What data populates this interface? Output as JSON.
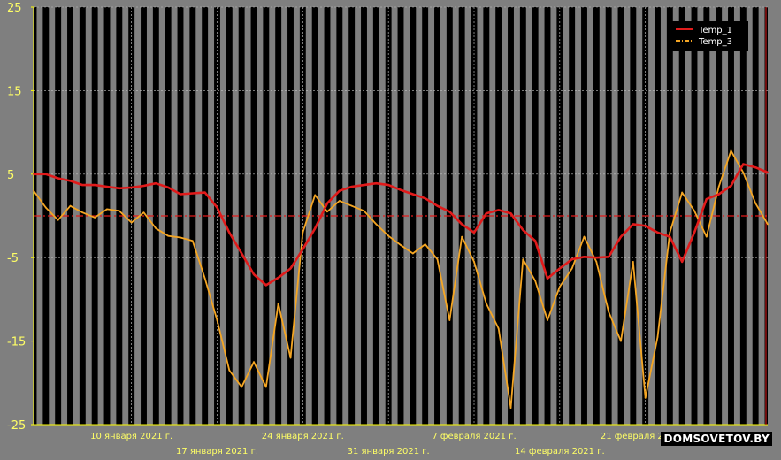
{
  "chart_data": {
    "type": "line",
    "title": "",
    "xlabel": "",
    "ylabel": "",
    "ylim": [
      -25,
      25
    ],
    "y_ticks": [
      "25",
      "15",
      "5",
      "-5",
      "-15",
      "-25"
    ],
    "y_tick_values": [
      25,
      15,
      5,
      -5,
      -15,
      -25
    ],
    "x_range_days": [
      2,
      62
    ],
    "x_ticks": [
      {
        "label": "10 января 2021 г.",
        "day": 10
      },
      {
        "label": "17 января 2021 г.",
        "day": 17
      },
      {
        "label": "24 января 2021 г.",
        "day": 24
      },
      {
        "label": "31 января 2021 г.",
        "day": 31
      },
      {
        "label": "7 февраля 2021 г.",
        "day": 38
      },
      {
        "label": "14 февраля 2021 г.",
        "day": 45
      },
      {
        "label": "21 февраля 2021 г.",
        "day": 52
      }
    ],
    "reference_line": {
      "y": 0,
      "color": "#e11b1b",
      "style": "dash-dot"
    },
    "background": {
      "plot": "#000000",
      "stripes": "#808080",
      "stripe_mode": "alternating-day-night"
    },
    "legend": {
      "placement": "top-right"
    },
    "series": [
      {
        "name": "Temp_1",
        "color": "#e11b1b",
        "style": "solid",
        "x": [
          2,
          3,
          4,
          5,
          6,
          7,
          8,
          9,
          10,
          11,
          12,
          13,
          14,
          15,
          16,
          17,
          18,
          19,
          20,
          21,
          22,
          23,
          24,
          25,
          26,
          27,
          28,
          29,
          30,
          31,
          32,
          33,
          34,
          35,
          36,
          37,
          38,
          39,
          40,
          41,
          42,
          43,
          44,
          45,
          46,
          47,
          48,
          49,
          50,
          51,
          52,
          53,
          54,
          55,
          56,
          57,
          58,
          59,
          60,
          61,
          62
        ],
        "y": [
          5,
          5,
          4.5,
          4.2,
          3.7,
          3.7,
          3.5,
          3.3,
          3.4,
          3.6,
          3.9,
          3.4,
          2.6,
          2.7,
          2.8,
          1,
          -2,
          -4.5,
          -7,
          -8.3,
          -7.4,
          -6.3,
          -4,
          -1.5,
          1.5,
          3,
          3.5,
          3.7,
          3.9,
          3.7,
          3.1,
          2.6,
          2.1,
          1.2,
          0.5,
          -1,
          -2,
          0.3,
          0.7,
          0.3,
          -1.7,
          -3,
          -7.5,
          -6.3,
          -5.2,
          -4.9,
          -5,
          -4.9,
          -2.5,
          -1,
          -1.2,
          -2,
          -2.5,
          -5.5,
          -2,
          2,
          2.6,
          3.6,
          6.2,
          5.8,
          5.2
        ]
      },
      {
        "name": "Temp_3",
        "color": "#f5a623",
        "style": "dash-dot",
        "x": [
          2,
          3,
          4,
          5,
          6,
          7,
          8,
          9,
          10,
          11,
          12,
          13,
          14,
          15,
          16,
          17,
          18,
          19,
          20,
          21,
          22,
          23,
          24,
          25,
          26,
          27,
          28,
          29,
          30,
          31,
          32,
          33,
          34,
          35,
          36,
          37,
          38,
          39,
          40,
          41,
          42,
          43,
          44,
          45,
          46,
          47,
          48,
          49,
          50,
          51,
          52,
          53,
          54,
          55,
          56,
          57,
          58,
          59,
          60,
          61,
          62
        ],
        "y": [
          3,
          1,
          -0.5,
          1.2,
          0.4,
          -0.2,
          0.8,
          0.6,
          -0.8,
          0.4,
          -1.5,
          -2.4,
          -2.6,
          -3,
          -7.5,
          -12.5,
          -18.5,
          -20.5,
          -17.5,
          -20.5,
          -10.5,
          -17,
          -2,
          2.5,
          0.5,
          1.8,
          1.2,
          0.6,
          -1,
          -2.4,
          -3.5,
          -4.5,
          -3.4,
          -5.2,
          -12.5,
          -2.5,
          -5.5,
          -10.5,
          -13.5,
          -23,
          -5.2,
          -7.8,
          -12.5,
          -8.5,
          -6.3,
          -2.5,
          -5.5,
          -11.5,
          -15,
          -5.5,
          -21.8,
          -14.5,
          -2,
          2.8,
          0.6,
          -2.5,
          3.5,
          7.8,
          5.2,
          1.5,
          -1
        ]
      }
    ]
  },
  "watermark": "DOMSOVETOV.BY"
}
